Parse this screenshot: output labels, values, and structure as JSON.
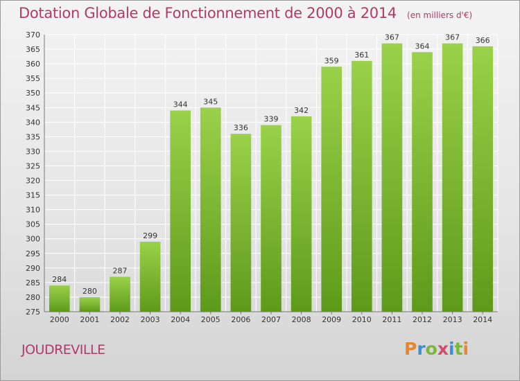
{
  "header": {
    "title": "Dotation Globale de Fonctionnement de 2000 à 2014",
    "subtitle": "(en milliers d'€)"
  },
  "footer": {
    "commune": "JOUDREVILLE",
    "logo_text": "Proxiti",
    "logo_colors": [
      "#e8872a",
      "#3c8fd0",
      "#7ab83a",
      "#d64a6a",
      "#3c8fd0",
      "#7ab83a",
      "#e8872a"
    ]
  },
  "chart_data": {
    "type": "bar",
    "title": "Dotation Globale de Fonctionnement de 2000 à 2014",
    "subtitle": "(en milliers d'€)",
    "categories": [
      "2000",
      "2001",
      "2002",
      "2003",
      "2004",
      "2005",
      "2006",
      "2007",
      "2008",
      "2009",
      "2010",
      "2011",
      "2012",
      "2013",
      "2014"
    ],
    "values": [
      284,
      280,
      287,
      299,
      344,
      345,
      336,
      339,
      342,
      359,
      361,
      367,
      364,
      367,
      366
    ],
    "xlabel": "",
    "ylabel": "",
    "ylim": [
      275,
      370
    ],
    "ytick_step": 5,
    "grid": true,
    "data_labels": true,
    "colors": {
      "bar_top": "#9ad14a",
      "bar_bottom": "#5e9a1a",
      "grid": "#ffffff",
      "axis_text": "#333333",
      "title": "#b03a66"
    }
  }
}
